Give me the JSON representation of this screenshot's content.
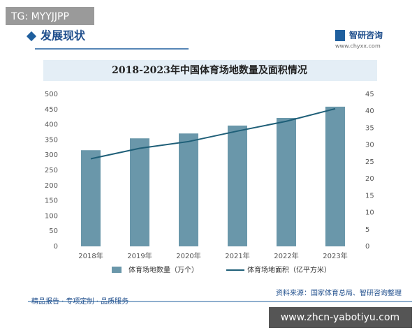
{
  "page": {
    "tag": "TG: MYYJJPP",
    "section": "发展现状",
    "brand": "智研咨询",
    "site": "www.chyxx.com",
    "footer": "精品报告 · 专项定制 · 品质服务",
    "overlay": "www.zhcn-yabotiyu.com"
  },
  "chart_data": {
    "type": "bar",
    "title": "2018-2023年中国体育场地数量及面积情况",
    "categories": [
      "2018年",
      "2019年",
      "2020年",
      "2021年",
      "2022年",
      "2023年"
    ],
    "series": [
      {
        "name": "体育场地数量（万个）",
        "type": "bar",
        "color": "#6a97aa",
        "values": [
          316,
          355,
          371,
          397,
          422,
          459
        ]
      },
      {
        "name": "体育场地面积（亿平方米）",
        "type": "line",
        "axis": "y2",
        "color": "#1f5f78",
        "values": [
          25.9,
          29.0,
          31.0,
          34.1,
          37.0,
          40.7
        ]
      }
    ],
    "ylim": [
      0,
      500
    ],
    "yticks": [
      0,
      50,
      100,
      150,
      200,
      250,
      300,
      350,
      400,
      450,
      500
    ],
    "y2lim": [
      0,
      45
    ],
    "y2ticks": [
      0,
      5,
      10,
      15,
      20,
      25,
      30,
      35,
      40,
      45
    ],
    "source": "资料来源：国家体育总局、智研咨询整理"
  }
}
